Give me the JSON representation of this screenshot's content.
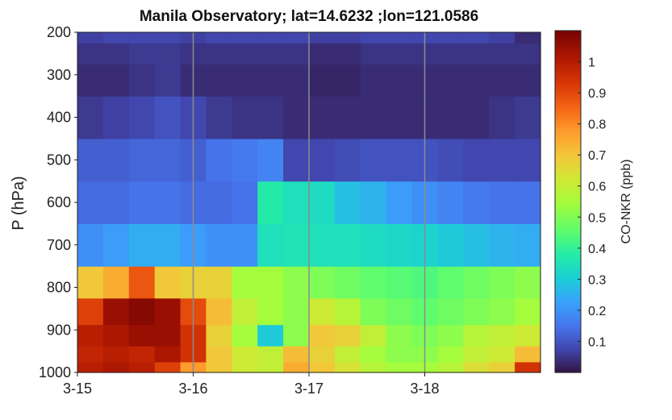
{
  "chart_data": {
    "type": "heatmap",
    "title": "Manila Observatory; lat=14.6232 ;lon=121.0586",
    "xlabel": "",
    "ylabel": "P (hPa)",
    "colorbar_label": "CO-NKR (ppb)",
    "x_ticks": [
      "3-15",
      "3-16",
      "3-17",
      "3-18"
    ],
    "y_ticks": [
      "200",
      "300",
      "400",
      "500",
      "600",
      "700",
      "800",
      "900",
      "1000"
    ],
    "ylim": [
      1000,
      200
    ],
    "y_reversed": true,
    "colorbar_ticks": [
      "0.1",
      "0.2",
      "0.3",
      "0.4",
      "0.5",
      "0.6",
      "0.7",
      "0.8",
      "0.9",
      "1"
    ],
    "colorbar_range": [
      0,
      1.1
    ],
    "colormap": "turbo",
    "grid_x_lines": true,
    "x_days": 4,
    "pressure_levels": [
      1000,
      950,
      925,
      850,
      800,
      700,
      600,
      500,
      400,
      300,
      250,
      200
    ],
    "z": [
      [
        1.0,
        1.02,
        1.0,
        0.92,
        0.78,
        0.7,
        0.62,
        0.6,
        0.75,
        0.7,
        0.64,
        0.58,
        0.55,
        0.55,
        0.58,
        0.65,
        0.68,
        0.95
      ],
      [
        0.98,
        1.0,
        0.98,
        1.02,
        0.95,
        0.7,
        0.62,
        0.6,
        0.72,
        0.68,
        0.6,
        0.55,
        0.52,
        0.52,
        0.55,
        0.6,
        0.62,
        0.72
      ],
      [
        1.0,
        1.02,
        1.05,
        1.05,
        0.95,
        0.68,
        0.55,
        0.3,
        0.52,
        0.7,
        0.68,
        0.6,
        0.52,
        0.5,
        0.52,
        0.58,
        0.6,
        0.62
      ],
      [
        0.92,
        1.05,
        1.08,
        1.05,
        0.9,
        0.72,
        0.6,
        0.55,
        0.52,
        0.62,
        0.58,
        0.5,
        0.48,
        0.46,
        0.48,
        0.5,
        0.52,
        0.55
      ],
      [
        0.7,
        0.75,
        0.88,
        0.7,
        0.68,
        0.68,
        0.55,
        0.55,
        0.52,
        0.5,
        0.48,
        0.46,
        0.45,
        0.44,
        0.46,
        0.48,
        0.5,
        0.52
      ],
      [
        0.2,
        0.22,
        0.25,
        0.25,
        0.22,
        0.2,
        0.2,
        0.35,
        0.36,
        0.35,
        0.35,
        0.34,
        0.33,
        0.32,
        0.3,
        0.28,
        0.26,
        0.25
      ],
      [
        0.14,
        0.14,
        0.15,
        0.15,
        0.14,
        0.14,
        0.15,
        0.38,
        0.35,
        0.34,
        0.28,
        0.26,
        0.22,
        0.2,
        0.18,
        0.16,
        0.15,
        0.15
      ],
      [
        0.12,
        0.12,
        0.13,
        0.13,
        0.12,
        0.15,
        0.16,
        0.18,
        0.08,
        0.08,
        0.09,
        0.1,
        0.1,
        0.1,
        0.09,
        0.08,
        0.08,
        0.08
      ],
      [
        0.06,
        0.07,
        0.08,
        0.1,
        0.08,
        0.06,
        0.05,
        0.05,
        0.04,
        0.04,
        0.04,
        0.04,
        0.04,
        0.04,
        0.04,
        0.04,
        0.05,
        0.06
      ],
      [
        0.04,
        0.04,
        0.05,
        0.06,
        0.04,
        0.04,
        0.04,
        0.04,
        0.04,
        0.03,
        0.03,
        0.04,
        0.04,
        0.04,
        0.04,
        0.04,
        0.04,
        0.04
      ],
      [
        0.05,
        0.05,
        0.06,
        0.06,
        0.05,
        0.05,
        0.05,
        0.05,
        0.05,
        0.04,
        0.04,
        0.05,
        0.05,
        0.05,
        0.05,
        0.05,
        0.05,
        0.05
      ],
      [
        0.07,
        0.08,
        0.08,
        0.08,
        0.07,
        0.08,
        0.08,
        0.08,
        0.08,
        0.07,
        0.07,
        0.08,
        0.08,
        0.08,
        0.08,
        0.08,
        0.07,
        0.04
      ]
    ]
  }
}
